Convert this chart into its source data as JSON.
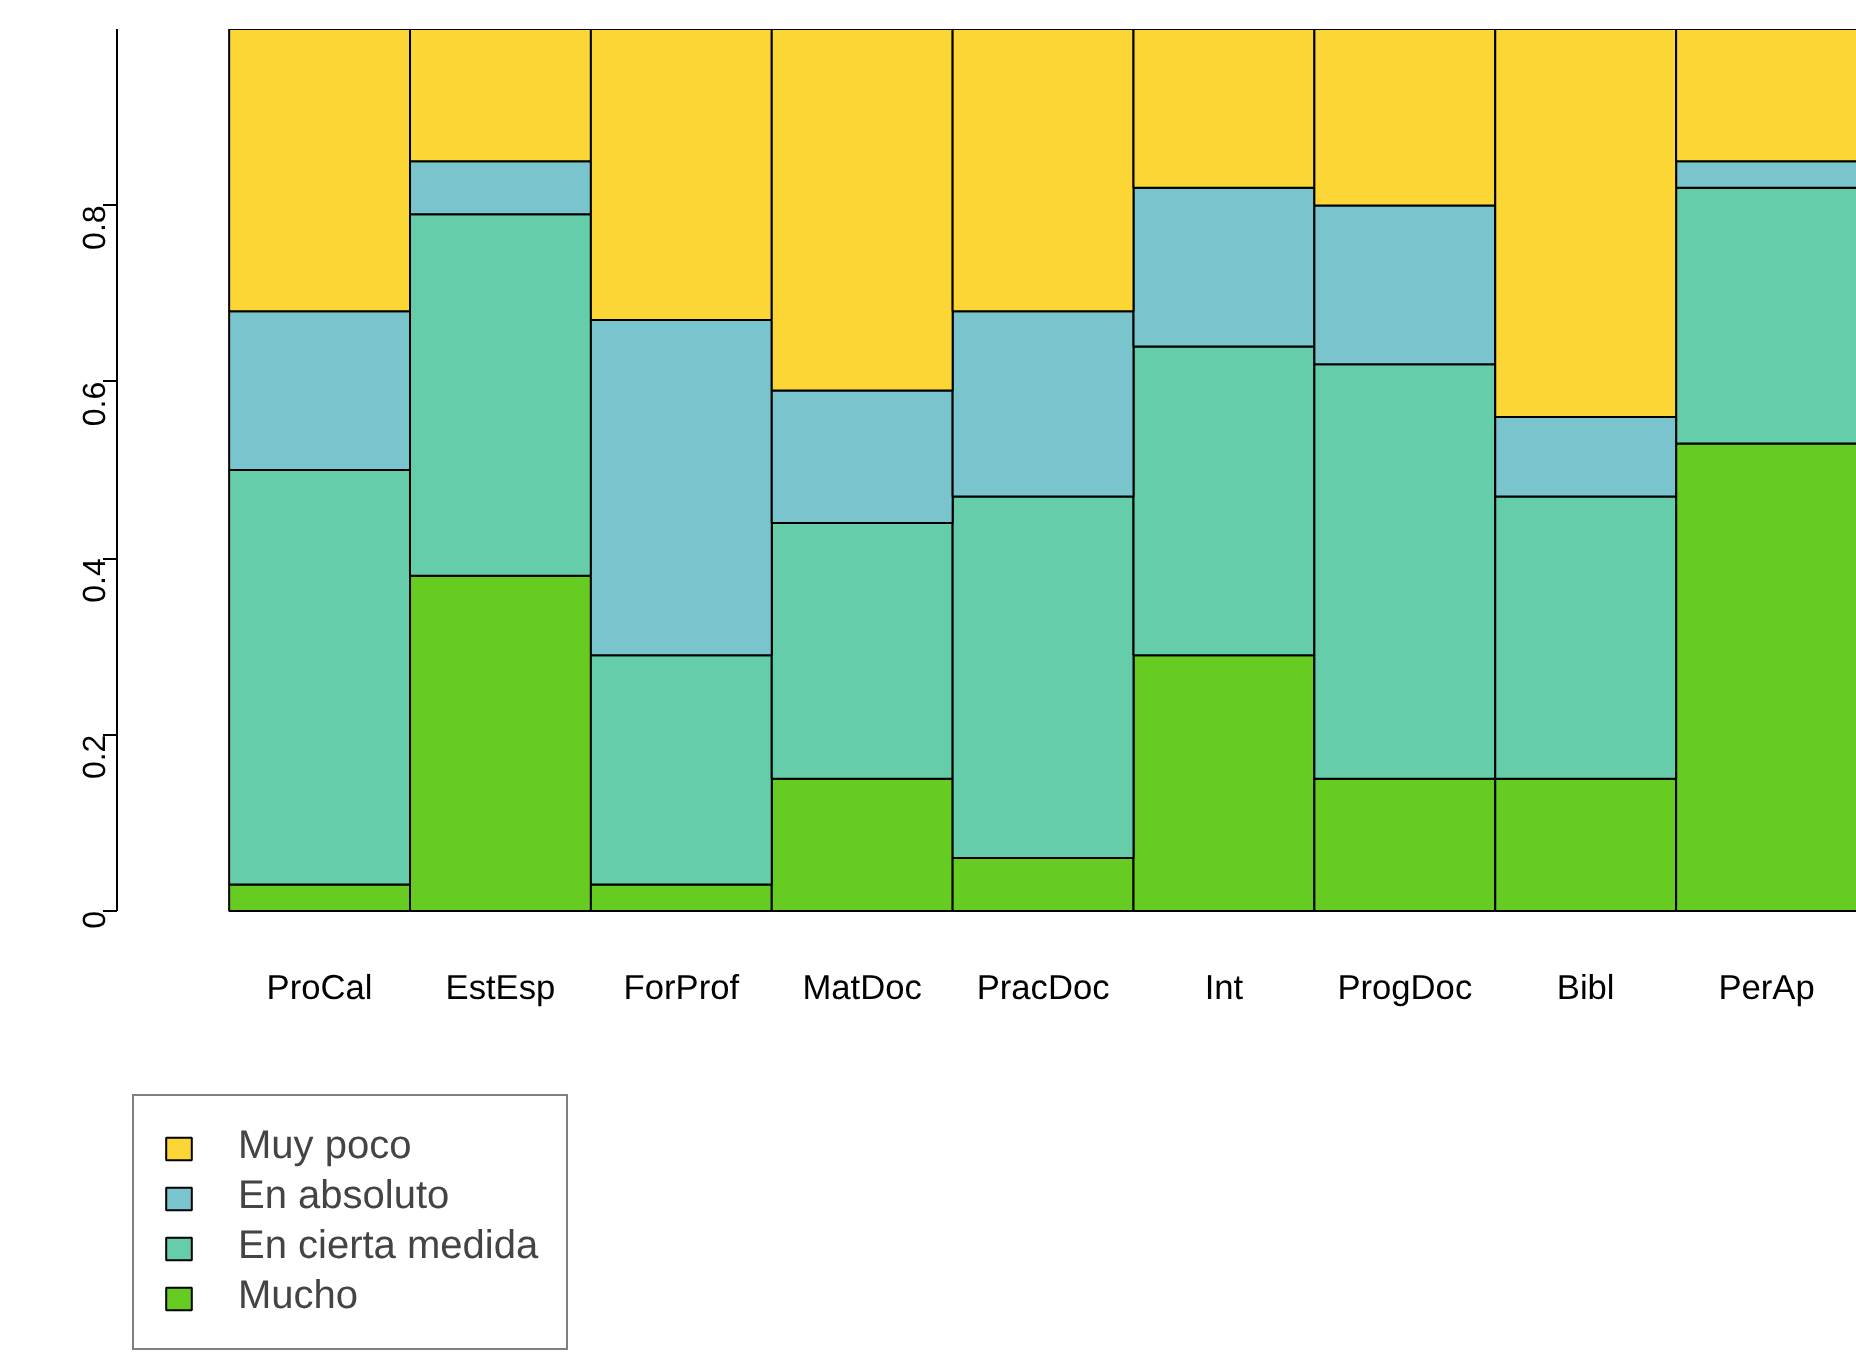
{
  "chart_data": {
    "type": "bar",
    "stacked": true,
    "categories": [
      "ProCal",
      "EstEsp",
      "ForProf",
      "MatDoc",
      "PracDoc",
      "Int",
      "ProgDoc",
      "Bibl",
      "PerAp"
    ],
    "series": [
      {
        "name": "Mucho",
        "color": "#66cc22",
        "values": [
          0.03,
          0.38,
          0.03,
          0.15,
          0.06,
          0.29,
          0.15,
          0.15,
          0.53
        ]
      },
      {
        "name": "En cierta medida",
        "color": "#66cdaa",
        "values": [
          0.47,
          0.41,
          0.26,
          0.29,
          0.41,
          0.35,
          0.47,
          0.32,
          0.29
        ]
      },
      {
        "name": "En absoluto",
        "color": "#7ac5cd",
        "values": [
          0.18,
          0.06,
          0.38,
          0.15,
          0.21,
          0.18,
          0.18,
          0.09,
          0.03
        ]
      },
      {
        "name": "Muy poco",
        "color": "#fcd634",
        "values": [
          0.32,
          0.15,
          0.33,
          0.41,
          0.32,
          0.18,
          0.2,
          0.44,
          0.15
        ]
      }
    ],
    "ylim": [
      0,
      1
    ],
    "yticks": [
      0,
      0.2,
      0.4,
      0.6,
      0.8
    ],
    "grid": false,
    "legend": "bottom left"
  }
}
